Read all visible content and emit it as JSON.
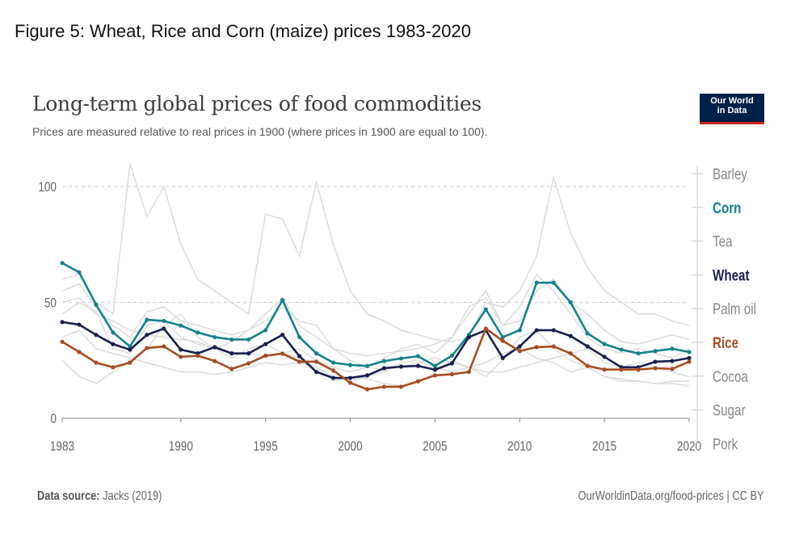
{
  "figure_title": "Figure 5: Wheat, Rice and Corn (maize) prices 1983-2020",
  "logo": {
    "line1": "Our World",
    "line2": "in Data"
  },
  "footer": {
    "source_label": "Data source:",
    "source_value": "Jacks (2019)",
    "credit": "OurWorldinData.org/food-prices | CC BY"
  },
  "chart_data": {
    "type": "line",
    "title": "Long-term global prices of food commodities",
    "subtitle": "Prices are measured relative to real prices in 1900 (where prices in 1900 are equal to 100).",
    "xlabel": "",
    "ylabel": "",
    "xlim": [
      1983,
      2020
    ],
    "ylim": [
      0,
      110
    ],
    "yticks": [
      0,
      50,
      100
    ],
    "xticks": [
      1983,
      1990,
      1995,
      2000,
      2005,
      2010,
      2015,
      2020
    ],
    "grid": "horizontal-dashed",
    "legend_placement": "right",
    "legend_order": [
      "Barley",
      "Corn",
      "Tea",
      "Wheat",
      "Palm oil",
      "Rice",
      "Cocoa",
      "Sugar",
      "Pork"
    ],
    "x": [
      1983,
      1984,
      1985,
      1986,
      1987,
      1988,
      1989,
      1990,
      1991,
      1992,
      1993,
      1994,
      1995,
      1996,
      1997,
      1998,
      1999,
      2000,
      2001,
      2002,
      2003,
      2004,
      2005,
      2006,
      2007,
      2008,
      2009,
      2010,
      2011,
      2012,
      2013,
      2014,
      2015,
      2016,
      2017,
      2018,
      2019,
      2020
    ],
    "series": [
      {
        "name": "Barley",
        "color": "#dcdcdc",
        "highlight": false,
        "values": [
          55,
          58,
          48,
          40,
          35,
          46,
          48,
          42,
          40,
          38,
          36,
          38,
          45,
          52,
          40,
          35,
          30,
          28,
          27,
          28,
          29,
          30,
          32,
          35,
          45,
          55,
          40,
          42,
          55,
          60,
          50,
          45,
          38,
          33,
          32,
          34,
          36,
          34
        ]
      },
      {
        "name": "Tea",
        "color": "#dcdcdc",
        "highlight": false,
        "values": [
          60,
          62,
          50,
          45,
          110,
          87,
          100,
          75,
          60,
          55,
          50,
          45,
          88,
          86,
          70,
          102,
          75,
          55,
          45,
          42,
          38,
          36,
          34,
          33,
          35,
          50,
          48,
          55,
          70,
          104,
          80,
          65,
          55,
          50,
          45,
          45,
          42,
          40
        ]
      },
      {
        "name": "Palm oil",
        "color": "#dcdcdc",
        "highlight": false,
        "values": [
          45,
          50,
          46,
          30,
          28,
          40,
          42,
          35,
          32,
          30,
          33,
          38,
          42,
          48,
          42,
          40,
          30,
          25,
          22,
          26,
          30,
          32,
          28,
          35,
          48,
          52,
          40,
          48,
          62,
          55,
          45,
          35,
          30,
          28,
          30,
          28,
          26,
          30
        ]
      },
      {
        "name": "Cocoa",
        "color": "#dcdcdc",
        "highlight": false,
        "values": [
          35,
          38,
          30,
          28,
          26,
          24,
          22,
          20,
          20,
          19,
          20,
          22,
          24,
          23,
          24,
          22,
          18,
          16,
          18,
          20,
          24,
          25,
          22,
          20,
          22,
          24,
          28,
          30,
          26,
          24,
          20,
          22,
          18,
          17,
          16,
          15,
          15,
          14
        ]
      },
      {
        "name": "Sugar",
        "color": "#dcdcdc",
        "highlight": false,
        "values": [
          25,
          18,
          15,
          20,
          25,
          30,
          40,
          45,
          35,
          30,
          26,
          30,
          32,
          28,
          26,
          22,
          16,
          18,
          17,
          15,
          14,
          15,
          20,
          25,
          22,
          18,
          25,
          35,
          38,
          30,
          25,
          22,
          18,
          16,
          16,
          15,
          16,
          16
        ]
      },
      {
        "name": "Pork",
        "color": "#dcdcdc",
        "highlight": false,
        "values": [
          50,
          52,
          45,
          42,
          38,
          36,
          35,
          34,
          33,
          30,
          28,
          28,
          27,
          28,
          30,
          25,
          22,
          20,
          22,
          21,
          22,
          24,
          26,
          24,
          22,
          20,
          20,
          22,
          24,
          26,
          28,
          30,
          24,
          22,
          24,
          22,
          20,
          18
        ]
      },
      {
        "name": "Corn",
        "color": "#14838a",
        "highlight": true,
        "values": [
          67,
          63,
          49,
          37,
          31,
          42.5,
          42,
          40,
          37,
          35,
          34,
          34,
          38,
          51,
          35,
          28,
          24,
          23,
          22.6,
          24.7,
          25.8,
          26.8,
          22.6,
          27,
          36,
          47,
          35,
          38,
          58.5,
          58.5,
          50,
          36.6,
          32,
          29.6,
          28,
          29,
          30,
          28.6
        ]
      },
      {
        "name": "Wheat",
        "color": "#18204f",
        "highlight": true,
        "values": [
          41.5,
          40.4,
          36,
          32,
          29.6,
          36,
          38.7,
          29.6,
          28,
          30.7,
          28,
          28,
          32,
          36,
          26.8,
          20,
          17.4,
          17.4,
          18.5,
          21.6,
          22.3,
          22.6,
          21,
          23.7,
          35,
          38,
          26,
          31,
          38,
          38,
          35.5,
          31,
          26.5,
          22,
          22,
          24.4,
          24.7,
          26
        ]
      },
      {
        "name": "Rice",
        "color": "#a64d22",
        "highlight": true,
        "values": [
          33,
          28.6,
          24,
          22,
          24,
          30.3,
          31,
          26.5,
          27,
          24.7,
          21.3,
          23.7,
          27,
          27.9,
          24.4,
          24.4,
          20.6,
          15.3,
          12.5,
          13.6,
          13.6,
          16,
          18.5,
          19,
          20,
          38.7,
          33.4,
          29,
          30.7,
          31,
          28,
          22.6,
          21,
          21,
          21,
          21.6,
          21.3,
          24.4
        ]
      }
    ]
  }
}
